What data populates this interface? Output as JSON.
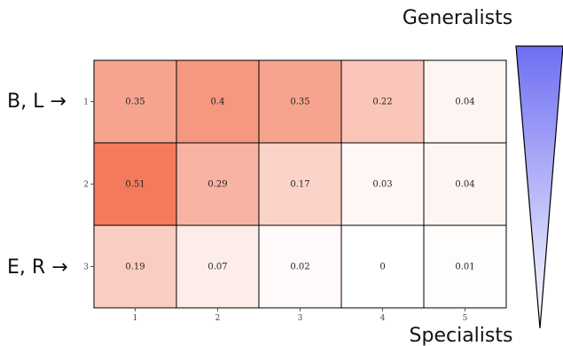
{
  "chart_data": {
    "type": "heatmap",
    "title": "",
    "xlabel": "",
    "ylabel": "",
    "x_categories": [
      "1",
      "2",
      "3",
      "4",
      "5"
    ],
    "y_categories": [
      "1",
      "2",
      "3"
    ],
    "values": [
      [
        0.35,
        0.4,
        0.35,
        0.22,
        0.04
      ],
      [
        0.51,
        0.29,
        0.17,
        0.03,
        0.04
      ],
      [
        0.19,
        0.07,
        0.02,
        0,
        0.01
      ]
    ],
    "value_labels": [
      [
        "0.35",
        "0.4",
        "0.35",
        "0.22",
        "0.04"
      ],
      [
        "0.51",
        "0.29",
        "0.17",
        "0.03",
        "0.04"
      ],
      [
        "0.19",
        "0.07",
        "0.02",
        "0",
        "0.01"
      ]
    ],
    "color_scale": {
      "low": "#ffffff",
      "high": "#f47a5c"
    },
    "grid": true
  },
  "annotations": {
    "top_gradient_label": "Generalists",
    "bottom_gradient_label": "Specialists",
    "row1_marker": "B, L →",
    "row3_marker": "E, R →",
    "gradient_colors": {
      "top": "#6e6ef2",
      "bottom": "#ffffff"
    }
  }
}
